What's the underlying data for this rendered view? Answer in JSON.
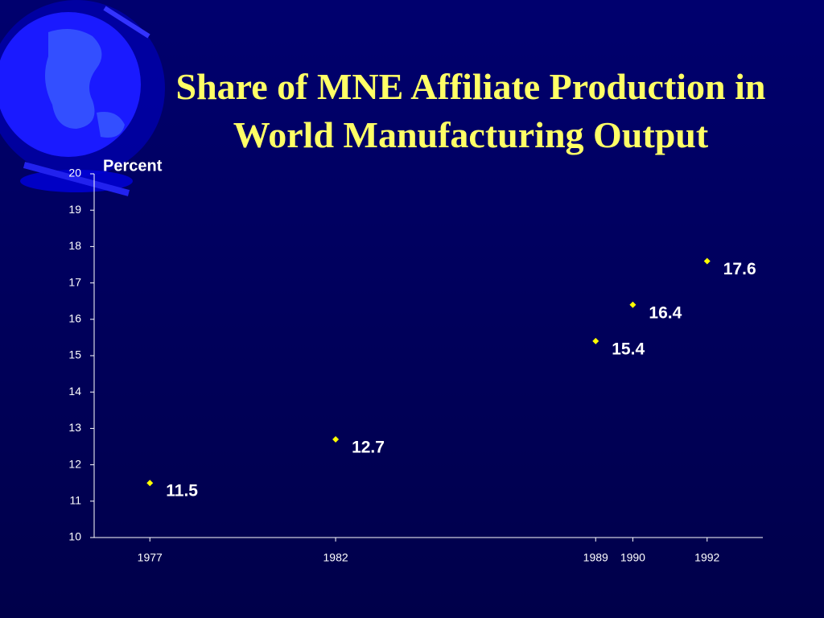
{
  "chart_data": {
    "type": "scatter",
    "title": "Share of MNE Affiliate Production in World Manufacturing Output",
    "y_label": "Percent",
    "x": [
      1977,
      1982,
      1989,
      1990,
      1992
    ],
    "values": [
      11.5,
      12.7,
      15.4,
      16.4,
      17.6
    ],
    "color": "#ffff00",
    "xlim": [
      1975.5,
      1993.5
    ],
    "xticks": [
      1977,
      1982,
      1989,
      1990,
      1992
    ],
    "ylim": [
      10,
      20
    ],
    "yticks": [
      10,
      11,
      12,
      13,
      14,
      15,
      16,
      17,
      18,
      19,
      20
    ]
  }
}
